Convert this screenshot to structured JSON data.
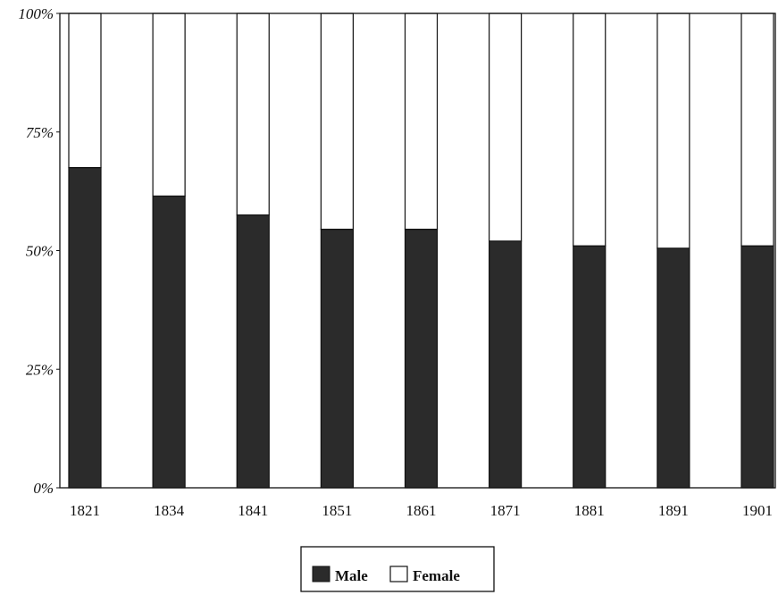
{
  "chart_data": {
    "type": "bar",
    "stacked": true,
    "percent": true,
    "categories": [
      "1821",
      "1834",
      "1841",
      "1851",
      "1861",
      "1871",
      "1881",
      "1891",
      "1901"
    ],
    "series": [
      {
        "name": "Male",
        "values": [
          67.5,
          61.5,
          57.5,
          54.5,
          54.5,
          52,
          51,
          50.5,
          51
        ],
        "color": "#2b2b2b"
      },
      {
        "name": "Female",
        "values": [
          32.5,
          38.5,
          42.5,
          45.5,
          45.5,
          48,
          49,
          49.5,
          49
        ],
        "color": "#ffffff"
      }
    ],
    "y_ticks": [
      "0%",
      "25%",
      "50%",
      "75%",
      "100%"
    ],
    "ylim": [
      0,
      100
    ],
    "grid": false,
    "legend_position": "bottom-center",
    "title": "",
    "xlabel": "",
    "ylabel": ""
  }
}
